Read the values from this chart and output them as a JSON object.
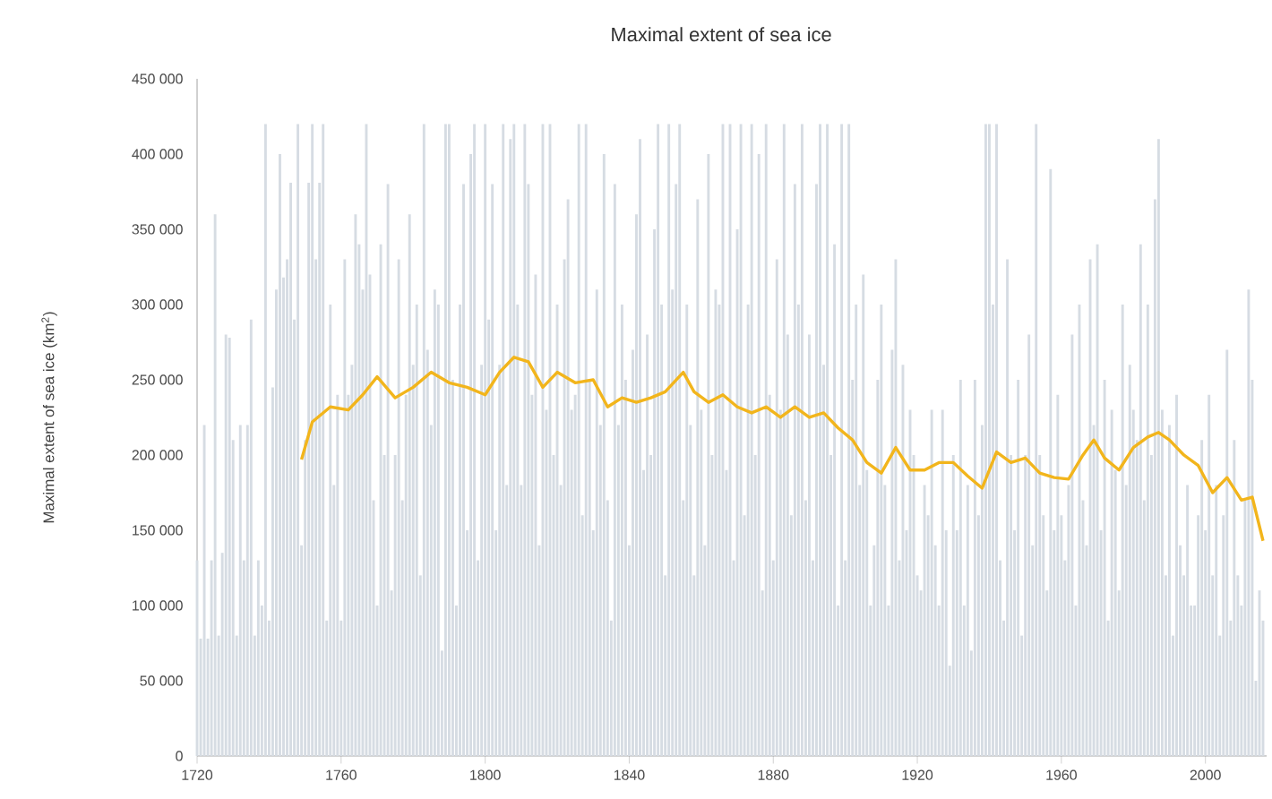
{
  "chart_data": {
    "type": "bar",
    "title": "Maximal extent of sea ice",
    "ylabel": "Maximal extent of sea ice (km$^{2}$)",
    "xlim": [
      1720,
      2017
    ],
    "xticks": [
      1720,
      1760,
      1800,
      1840,
      1880,
      1920,
      1960,
      2000
    ],
    "ylim": [
      0,
      450000
    ],
    "yticks": [
      0,
      {
        "value": 50000,
        "label": "50 000"
      },
      {
        "value": 100000,
        "label": "100 000"
      },
      {
        "value": 150000,
        "label": "150 000"
      },
      {
        "value": 200000,
        "label": "200 000"
      },
      {
        "value": 250000,
        "label": "250 000"
      },
      {
        "value": 300000,
        "label": "300 000"
      },
      {
        "value": 350000,
        "label": "350 000"
      },
      {
        "value": 400000,
        "label": "400 000"
      },
      {
        "value": 450000,
        "label": "450 000"
      }
    ],
    "x": [
      1720,
      1721,
      1722,
      1723,
      1724,
      1725,
      1726,
      1727,
      1728,
      1729,
      1730,
      1731,
      1732,
      1733,
      1734,
      1735,
      1736,
      1737,
      1738,
      1739,
      1740,
      1741,
      1742,
      1743,
      1744,
      1745,
      1746,
      1747,
      1748,
      1749,
      1750,
      1751,
      1752,
      1753,
      1754,
      1755,
      1756,
      1757,
      1758,
      1759,
      1760,
      1761,
      1762,
      1763,
      1764,
      1765,
      1766,
      1767,
      1768,
      1769,
      1770,
      1771,
      1772,
      1773,
      1774,
      1775,
      1776,
      1777,
      1778,
      1779,
      1780,
      1781,
      1782,
      1783,
      1784,
      1785,
      1786,
      1787,
      1788,
      1789,
      1790,
      1791,
      1792,
      1793,
      1794,
      1795,
      1796,
      1797,
      1798,
      1799,
      1800,
      1801,
      1802,
      1803,
      1804,
      1805,
      1806,
      1807,
      1808,
      1809,
      1810,
      1811,
      1812,
      1813,
      1814,
      1815,
      1816,
      1817,
      1818,
      1819,
      1820,
      1821,
      1822,
      1823,
      1824,
      1825,
      1826,
      1827,
      1828,
      1829,
      1830,
      1831,
      1832,
      1833,
      1834,
      1835,
      1836,
      1837,
      1838,
      1839,
      1840,
      1841,
      1842,
      1843,
      1844,
      1845,
      1846,
      1847,
      1848,
      1849,
      1850,
      1851,
      1852,
      1853,
      1854,
      1855,
      1856,
      1857,
      1858,
      1859,
      1860,
      1861,
      1862,
      1863,
      1864,
      1865,
      1866,
      1867,
      1868,
      1869,
      1870,
      1871,
      1872,
      1873,
      1874,
      1875,
      1876,
      1877,
      1878,
      1879,
      1880,
      1881,
      1882,
      1883,
      1884,
      1885,
      1886,
      1887,
      1888,
      1889,
      1890,
      1891,
      1892,
      1893,
      1894,
      1895,
      1896,
      1897,
      1898,
      1899,
      1900,
      1901,
      1902,
      1903,
      1904,
      1905,
      1906,
      1907,
      1908,
      1909,
      1910,
      1911,
      1912,
      1913,
      1914,
      1915,
      1916,
      1917,
      1918,
      1919,
      1920,
      1921,
      1922,
      1923,
      1924,
      1925,
      1926,
      1927,
      1928,
      1929,
      1930,
      1931,
      1932,
      1933,
      1934,
      1935,
      1936,
      1937,
      1938,
      1939,
      1940,
      1941,
      1942,
      1943,
      1944,
      1945,
      1946,
      1947,
      1948,
      1949,
      1950,
      1951,
      1952,
      1953,
      1954,
      1955,
      1956,
      1957,
      1958,
      1959,
      1960,
      1961,
      1962,
      1963,
      1964,
      1965,
      1966,
      1967,
      1968,
      1969,
      1970,
      1971,
      1972,
      1973,
      1974,
      1975,
      1976,
      1977,
      1978,
      1979,
      1980,
      1981,
      1982,
      1983,
      1984,
      1985,
      1986,
      1987,
      1988,
      1989,
      1990,
      1991,
      1992,
      1993,
      1994,
      1995,
      1996,
      1997,
      1998,
      1999,
      2000,
      2001,
      2002,
      2003,
      2004,
      2005,
      2006,
      2007,
      2008,
      2009,
      2010,
      2011,
      2012,
      2013,
      2014,
      2015,
      2016
    ],
    "series": [
      {
        "color": "#d6dce3",
        "values": [
          130000,
          78000,
          220000,
          78000,
          130000,
          360000,
          80000,
          135000,
          280000,
          278000,
          210000,
          80000,
          220000,
          130000,
          220000,
          290000,
          80000,
          130000,
          100000,
          420000,
          90000,
          245000,
          310000,
          400000,
          318000,
          330000,
          381000,
          290000,
          420000,
          140000,
          210000,
          381000,
          420000,
          330000,
          381000,
          420000,
          90000,
          300000,
          180000,
          240000,
          90000,
          330000,
          240000,
          260000,
          360000,
          340000,
          310000,
          420000,
          320000,
          170000,
          100000,
          340000,
          200000,
          380000,
          110000,
          200000,
          330000,
          170000,
          240000,
          360000,
          260000,
          300000,
          120000,
          420000,
          270000,
          220000,
          310000,
          300000,
          70000,
          420000,
          420000,
          250000,
          100000,
          300000,
          380000,
          150000,
          400000,
          420000,
          130000,
          260000,
          420000,
          290000,
          380000,
          150000,
          260000,
          420000,
          180000,
          410000,
          420000,
          300000,
          180000,
          420000,
          380000,
          240000,
          320000,
          140000,
          420000,
          230000,
          420000,
          200000,
          300000,
          180000,
          330000,
          370000,
          230000,
          240000,
          420000,
          160000,
          420000,
          250000,
          150000,
          310000,
          220000,
          400000,
          170000,
          90000,
          380000,
          220000,
          300000,
          250000,
          140000,
          270000,
          360000,
          410000,
          190000,
          280000,
          200000,
          350000,
          420000,
          300000,
          120000,
          420000,
          310000,
          380000,
          420000,
          170000,
          300000,
          220000,
          120000,
          370000,
          230000,
          140000,
          400000,
          200000,
          310000,
          300000,
          420000,
          190000,
          420000,
          130000,
          350000,
          420000,
          160000,
          300000,
          420000,
          200000,
          400000,
          110000,
          420000,
          240000,
          130000,
          330000,
          230000,
          420000,
          280000,
          160000,
          380000,
          300000,
          420000,
          170000,
          280000,
          130000,
          380000,
          420000,
          260000,
          420000,
          200000,
          340000,
          100000,
          420000,
          130000,
          420000,
          250000,
          300000,
          180000,
          320000,
          190000,
          100000,
          140000,
          250000,
          300000,
          180000,
          100000,
          270000,
          330000,
          130000,
          260000,
          150000,
          230000,
          200000,
          120000,
          110000,
          180000,
          160000,
          230000,
          140000,
          100000,
          230000,
          150000,
          60000,
          200000,
          150000,
          250000,
          100000,
          180000,
          70000,
          250000,
          160000,
          220000,
          420000,
          420000,
          300000,
          420000,
          130000,
          90000,
          330000,
          200000,
          150000,
          250000,
          80000,
          200000,
          280000,
          140000,
          420000,
          200000,
          160000,
          110000,
          390000,
          150000,
          240000,
          160000,
          130000,
          180000,
          280000,
          100000,
          300000,
          170000,
          140000,
          330000,
          220000,
          340000,
          150000,
          250000,
          90000,
          230000,
          190000,
          110000,
          300000,
          180000,
          260000,
          230000,
          210000,
          340000,
          170000,
          300000,
          200000,
          370000,
          410000,
          230000,
          120000,
          220000,
          80000,
          240000,
          140000,
          120000,
          180000,
          100000,
          100000,
          160000,
          210000,
          150000,
          240000,
          120000,
          180000,
          80000,
          160000,
          270000,
          90000,
          210000,
          120000,
          100000,
          170000,
          310000,
          250000,
          50000,
          110000,
          90000
        ]
      },
      {
        "type": "line",
        "color": "#f2b51c",
        "x": [
          1749,
          1752,
          1757,
          1762,
          1766,
          1770,
          1775,
          1780,
          1785,
          1790,
          1795,
          1800,
          1804,
          1808,
          1812,
          1816,
          1820,
          1825,
          1830,
          1834,
          1838,
          1842,
          1846,
          1850,
          1855,
          1858,
          1862,
          1866,
          1870,
          1874,
          1878,
          1882,
          1886,
          1890,
          1894,
          1898,
          1902,
          1906,
          1910,
          1914,
          1918,
          1922,
          1926,
          1930,
          1934,
          1938,
          1942,
          1946,
          1950,
          1954,
          1958,
          1962,
          1966,
          1969,
          1972,
          1976,
          1980,
          1984,
          1987,
          1990,
          1994,
          1998,
          2002,
          2006,
          2010,
          2013,
          2016
        ],
        "values": [
          197000,
          222000,
          232000,
          230000,
          240000,
          252000,
          238000,
          245000,
          255000,
          248000,
          245000,
          240000,
          255000,
          265000,
          262000,
          245000,
          255000,
          248000,
          250000,
          232000,
          238000,
          235000,
          238000,
          242000,
          255000,
          242000,
          235000,
          240000,
          232000,
          228000,
          232000,
          225000,
          232000,
          225000,
          228000,
          218000,
          210000,
          195000,
          188000,
          205000,
          190000,
          190000,
          195000,
          195000,
          186000,
          178000,
          202000,
          195000,
          198000,
          188000,
          185000,
          184000,
          200000,
          210000,
          198000,
          190000,
          205000,
          212000,
          215000,
          210000,
          200000,
          193000,
          175000,
          185000,
          170000,
          172000,
          143000
        ]
      }
    ]
  }
}
